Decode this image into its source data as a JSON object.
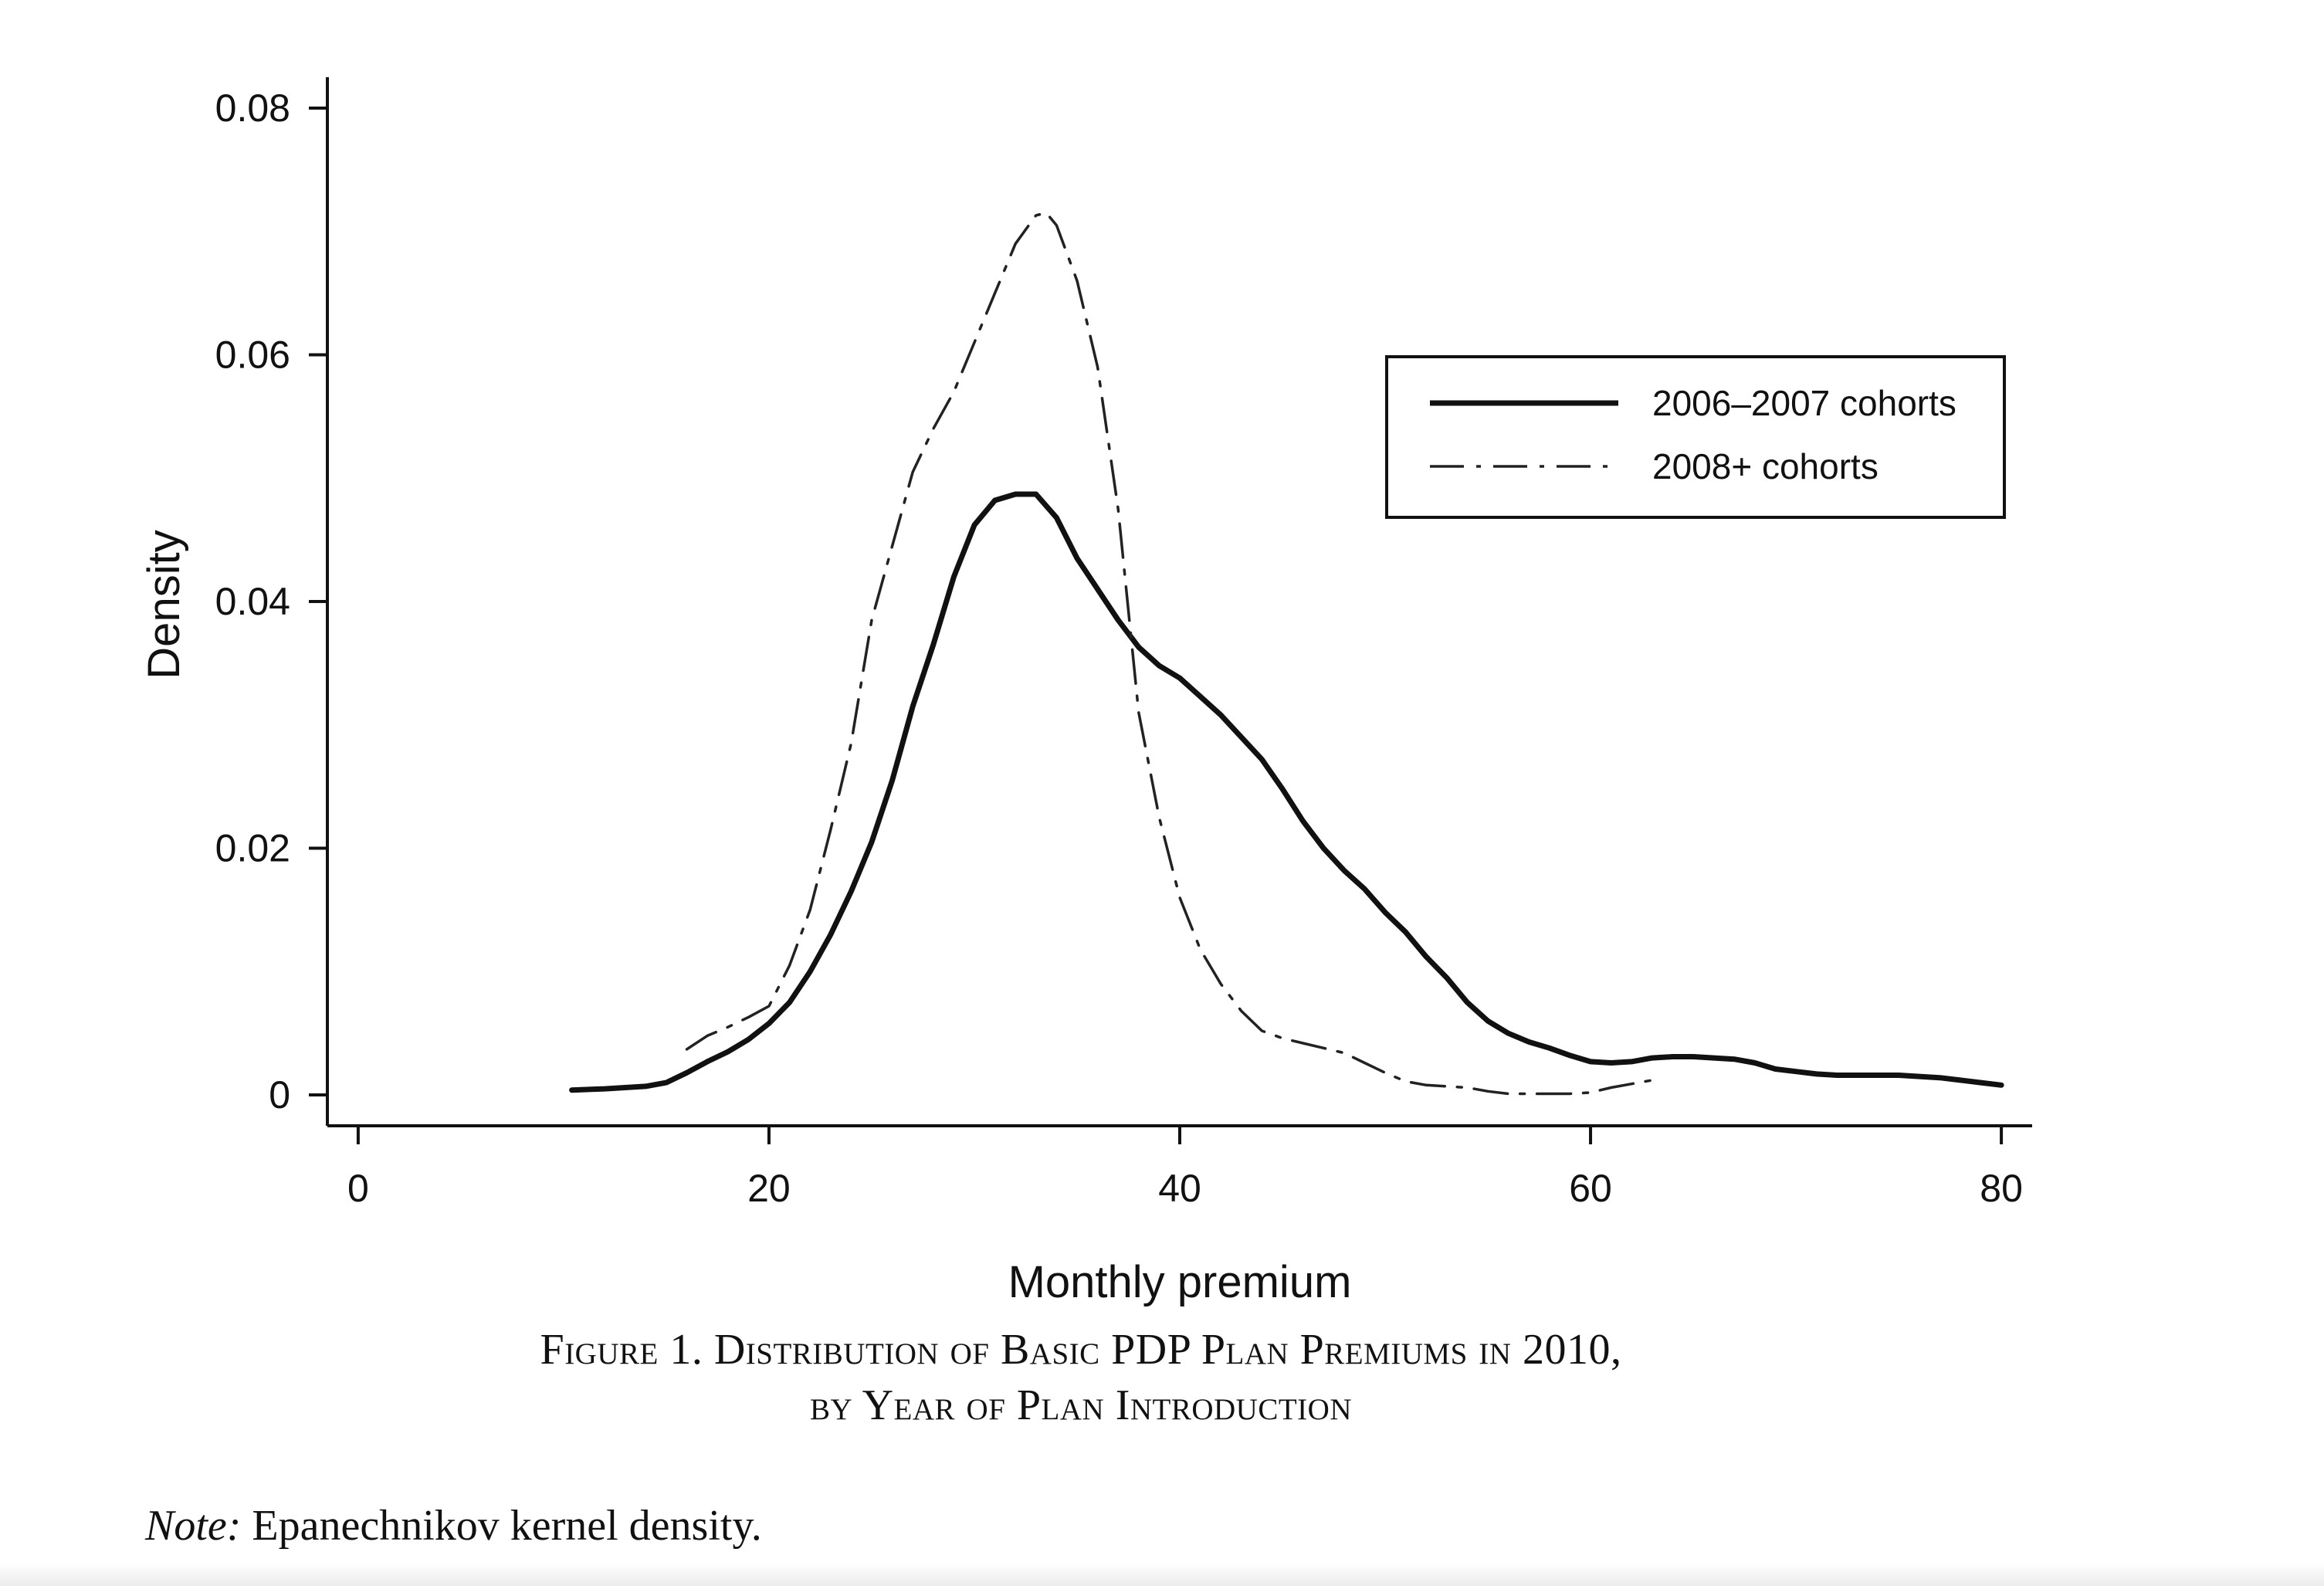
{
  "chart_data": {
    "type": "line",
    "xlabel": "Monthly premium",
    "ylabel": "Density",
    "xlim": [
      -1.5,
      81.5
    ],
    "ylim": [
      -0.0025,
      0.0825
    ],
    "xticks": [
      0,
      20,
      40,
      60,
      80
    ],
    "yticks": [
      0,
      0.02,
      0.04,
      0.06,
      0.08
    ],
    "xtick_labels": [
      "0",
      "20",
      "40",
      "60",
      "80"
    ],
    "ytick_labels": [
      "0",
      "0.02",
      "0.04",
      "0.06",
      "0.08"
    ],
    "grid": false,
    "legend_position": "top-right",
    "series": [
      {
        "name": "2006–2007 cohorts",
        "style": "solid",
        "color": "#111111",
        "x": [
          10.4,
          12,
          14,
          15,
          16,
          17,
          18,
          19,
          20,
          21,
          22,
          23,
          24,
          25,
          26,
          27,
          28,
          29,
          30,
          31,
          32,
          33,
          34,
          35,
          36,
          37,
          38,
          39,
          40,
          41,
          42,
          43,
          44,
          45,
          46,
          47,
          48,
          49,
          50,
          51,
          52,
          53,
          54,
          55,
          56,
          57,
          58,
          59,
          60,
          61,
          62,
          63,
          64,
          65,
          66,
          67,
          68,
          69,
          70,
          71,
          72,
          73,
          74,
          75,
          76,
          77,
          78,
          79,
          80
        ],
        "y": [
          0.0004,
          0.0005,
          0.0007,
          0.001,
          0.0018,
          0.0027,
          0.0035,
          0.0045,
          0.0058,
          0.0075,
          0.01,
          0.013,
          0.0165,
          0.0205,
          0.0255,
          0.0315,
          0.0365,
          0.042,
          0.0462,
          0.0482,
          0.0487,
          0.0487,
          0.0468,
          0.0435,
          0.041,
          0.0385,
          0.0363,
          0.0348,
          0.0338,
          0.0323,
          0.0308,
          0.029,
          0.0272,
          0.0248,
          0.0222,
          0.02,
          0.0182,
          0.0167,
          0.0148,
          0.0132,
          0.0112,
          0.0095,
          0.0075,
          0.006,
          0.005,
          0.0043,
          0.0038,
          0.0032,
          0.0027,
          0.0026,
          0.0027,
          0.003,
          0.0031,
          0.0031,
          0.003,
          0.0029,
          0.0026,
          0.0021,
          0.0019,
          0.0017,
          0.0016,
          0.0016,
          0.0016,
          0.0016,
          0.0015,
          0.0014,
          0.0012,
          0.001,
          0.0008
        ]
      },
      {
        "name": "2008+ cohorts",
        "style": "dashdot",
        "color": "#222222",
        "x": [
          16,
          17,
          18,
          19,
          20,
          21,
          22,
          23,
          24,
          25,
          26,
          27,
          28,
          29,
          30,
          31,
          32,
          33,
          33.5,
          34,
          35,
          36,
          37,
          38,
          39,
          40,
          41,
          42,
          43,
          44,
          45,
          46,
          47,
          48,
          49,
          50,
          51,
          52,
          53,
          54,
          55,
          56,
          57,
          58,
          59,
          60,
          61,
          62,
          63
        ],
        "y": [
          0.0037,
          0.0048,
          0.0055,
          0.0063,
          0.0072,
          0.0105,
          0.015,
          0.0215,
          0.0285,
          0.0385,
          0.0445,
          0.0505,
          0.054,
          0.057,
          0.061,
          0.065,
          0.069,
          0.0713,
          0.0715,
          0.0705,
          0.066,
          0.059,
          0.0475,
          0.031,
          0.0225,
          0.016,
          0.0118,
          0.009,
          0.0068,
          0.0052,
          0.0046,
          0.0042,
          0.0038,
          0.0034,
          0.0026,
          0.0018,
          0.0011,
          0.0008,
          0.0007,
          0.0006,
          0.0003,
          0.0001,
          0.0001,
          0.0001,
          0.0001,
          0.0002,
          0.0006,
          0.0009,
          0.0012
        ]
      }
    ]
  },
  "caption": {
    "line1": "Figure 1. Distribution of Basic PDP Plan Premiums in 2010,",
    "line2": "by Year of Plan Introduction"
  },
  "note": {
    "label": "Note:",
    "text": " Epanechnikov kernel density."
  }
}
